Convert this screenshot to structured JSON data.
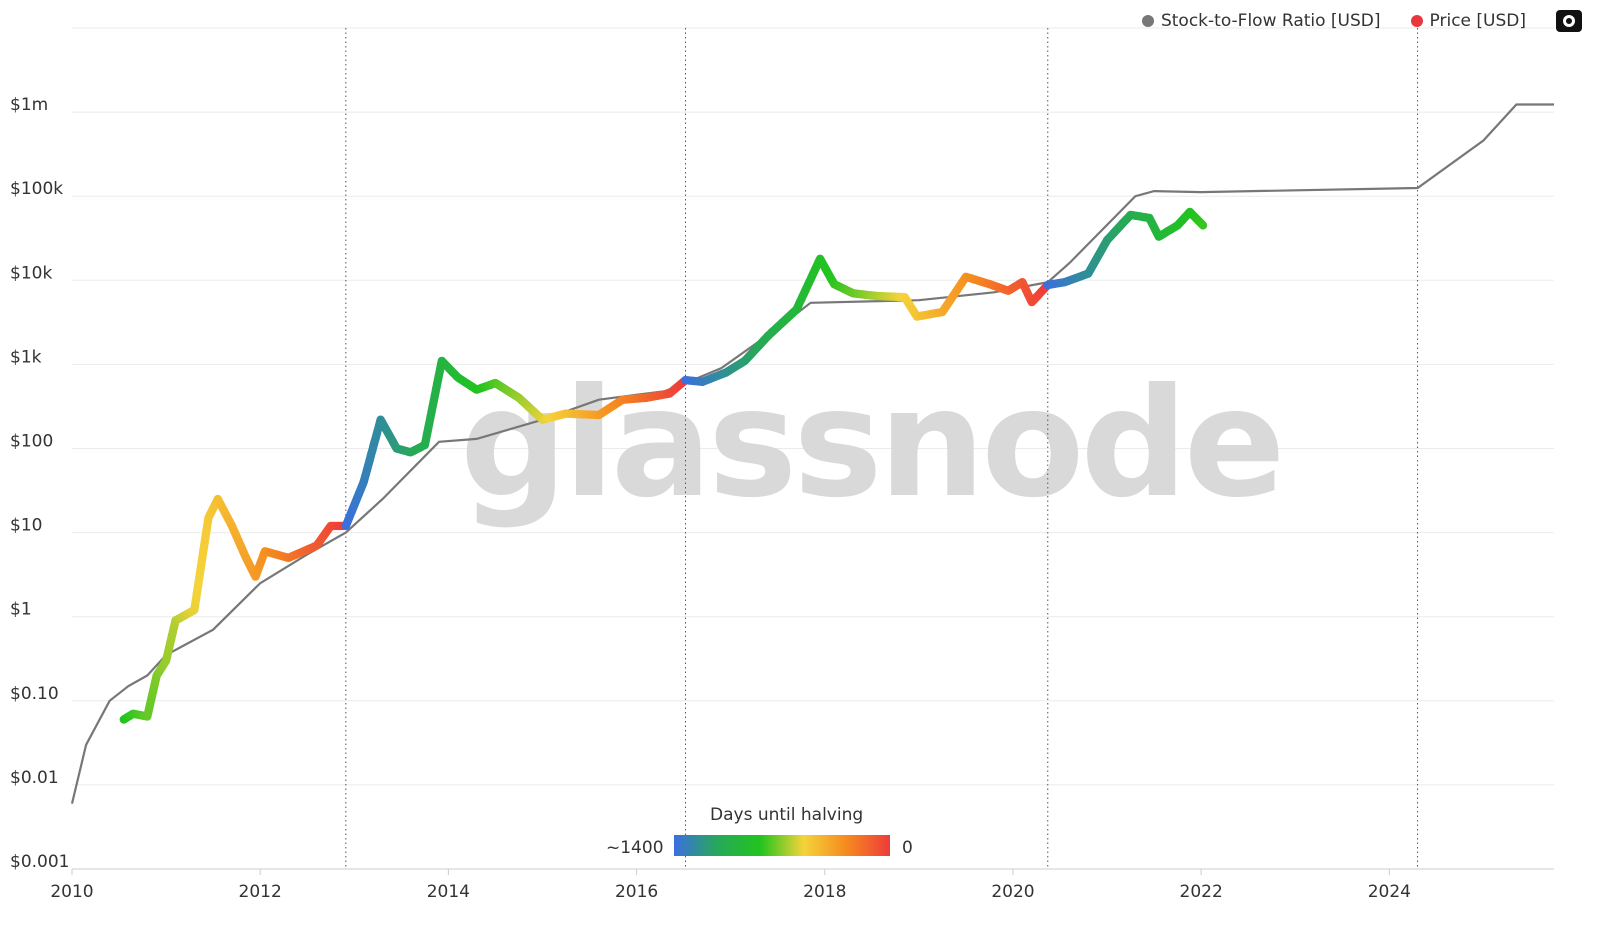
{
  "legend": {
    "items": [
      {
        "label": "Stock-to-Flow Ratio [USD]",
        "color": "#777777"
      },
      {
        "label": "Price [USD]",
        "color": "#e8383d"
      }
    ],
    "camera_icon": "camera-icon"
  },
  "watermark": "glassnode",
  "colorbar": {
    "title": "Days until halving",
    "min_label": "~1400",
    "max_label": "0",
    "colors": [
      "#3b6fe0",
      "#27a85a",
      "#22c41e",
      "#f5d33a",
      "#f58a1f",
      "#ee3b3b"
    ]
  },
  "chart_data": {
    "type": "scatter",
    "y_scale": "log",
    "xlim": [
      2010,
      2025.75
    ],
    "ylim": [
      0.001,
      10000000
    ],
    "x_ticks": [
      {
        "v": 2010,
        "label": "2010"
      },
      {
        "v": 2012,
        "label": "2012"
      },
      {
        "v": 2014,
        "label": "2014"
      },
      {
        "v": 2016,
        "label": "2016"
      },
      {
        "v": 2018,
        "label": "2018"
      },
      {
        "v": 2020,
        "label": "2020"
      },
      {
        "v": 2022,
        "label": "2022"
      },
      {
        "v": 2024,
        "label": "2024"
      }
    ],
    "y_ticks": [
      {
        "v": 0.001,
        "label": "$0.001"
      },
      {
        "v": 0.01,
        "label": "$0.01"
      },
      {
        "v": 0.1,
        "label": "$0.10"
      },
      {
        "v": 1,
        "label": "$1"
      },
      {
        "v": 10,
        "label": "$10"
      },
      {
        "v": 100,
        "label": "$100"
      },
      {
        "v": 1000,
        "label": "$1k"
      },
      {
        "v": 10000,
        "label": "$10k"
      },
      {
        "v": 100000,
        "label": "$100k"
      },
      {
        "v": 1000000,
        "label": "$1m"
      }
    ],
    "halvings": [
      2012.91,
      2016.52,
      2020.37,
      2024.3
    ],
    "stock_to_flow": [
      [
        2010.0,
        0.006
      ],
      [
        2010.15,
        0.03
      ],
      [
        2010.4,
        0.1
      ],
      [
        2010.6,
        0.15
      ],
      [
        2010.8,
        0.2
      ],
      [
        2011.0,
        0.35
      ],
      [
        2011.5,
        0.7
      ],
      [
        2012.0,
        2.5
      ],
      [
        2012.5,
        5.5
      ],
      [
        2012.91,
        10
      ],
      [
        2013.3,
        25
      ],
      [
        2013.9,
        120
      ],
      [
        2014.3,
        130
      ],
      [
        2015.0,
        220
      ],
      [
        2015.6,
        380
      ],
      [
        2016.3,
        480
      ],
      [
        2016.52,
        600
      ],
      [
        2016.9,
        900
      ],
      [
        2017.5,
        2700
      ],
      [
        2017.85,
        5400
      ],
      [
        2019.0,
        5800
      ],
      [
        2019.8,
        7200
      ],
      [
        2020.37,
        9500
      ],
      [
        2020.6,
        16000
      ],
      [
        2020.9,
        35000
      ],
      [
        2021.3,
        100000
      ],
      [
        2021.5,
        115000
      ],
      [
        2022.0,
        112000
      ],
      [
        2024.3,
        125000
      ],
      [
        2025.0,
        460000
      ],
      [
        2025.35,
        1230000
      ],
      [
        2025.75,
        1230000
      ]
    ],
    "price": [
      [
        2010.55,
        0.06
      ],
      [
        2010.65,
        0.07
      ],
      [
        2010.8,
        0.065
      ],
      [
        2010.9,
        0.2
      ],
      [
        2011.0,
        0.3
      ],
      [
        2011.1,
        0.9
      ],
      [
        2011.3,
        1.2
      ],
      [
        2011.45,
        15
      ],
      [
        2011.55,
        25
      ],
      [
        2011.7,
        12
      ],
      [
        2011.85,
        5
      ],
      [
        2011.95,
        3
      ],
      [
        2012.05,
        6
      ],
      [
        2012.3,
        5
      ],
      [
        2012.6,
        7
      ],
      [
        2012.75,
        12
      ],
      [
        2012.91,
        12
      ],
      [
        2013.1,
        40
      ],
      [
        2013.28,
        220
      ],
      [
        2013.45,
        100
      ],
      [
        2013.6,
        90
      ],
      [
        2013.75,
        110
      ],
      [
        2013.93,
        1100
      ],
      [
        2014.1,
        700
      ],
      [
        2014.3,
        500
      ],
      [
        2014.5,
        600
      ],
      [
        2014.75,
        400
      ],
      [
        2015.0,
        220
      ],
      [
        2015.25,
        260
      ],
      [
        2015.6,
        250
      ],
      [
        2015.85,
        380
      ],
      [
        2016.1,
        400
      ],
      [
        2016.35,
        450
      ],
      [
        2016.52,
        650
      ],
      [
        2016.7,
        620
      ],
      [
        2016.95,
        800
      ],
      [
        2017.15,
        1100
      ],
      [
        2017.4,
        2200
      ],
      [
        2017.7,
        4500
      ],
      [
        2017.95,
        18000
      ],
      [
        2018.1,
        9000
      ],
      [
        2018.3,
        7000
      ],
      [
        2018.55,
        6500
      ],
      [
        2018.85,
        6300
      ],
      [
        2018.98,
        3700
      ],
      [
        2019.25,
        4200
      ],
      [
        2019.5,
        11000
      ],
      [
        2019.75,
        9000
      ],
      [
        2019.95,
        7500
      ],
      [
        2020.1,
        9500
      ],
      [
        2020.2,
        5500
      ],
      [
        2020.37,
        8800
      ],
      [
        2020.55,
        9500
      ],
      [
        2020.8,
        12000
      ],
      [
        2021.0,
        30000
      ],
      [
        2021.25,
        60000
      ],
      [
        2021.45,
        55000
      ],
      [
        2021.55,
        33000
      ],
      [
        2021.75,
        45000
      ],
      [
        2021.88,
        65000
      ],
      [
        2022.02,
        45000
      ]
    ]
  }
}
